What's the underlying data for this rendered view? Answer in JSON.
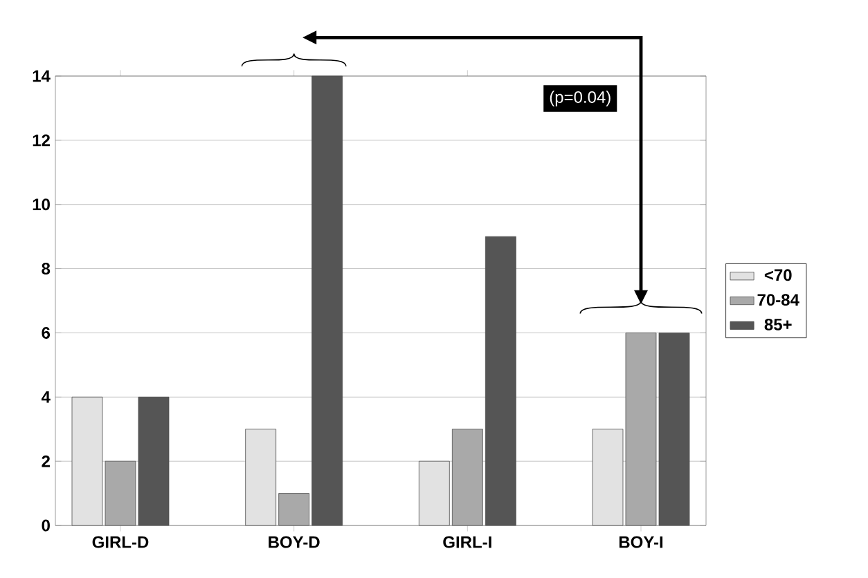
{
  "chart_data": {
    "type": "bar",
    "categories": [
      "GIRL-D",
      "BOY-D",
      "GIRL-I",
      "BOY-I"
    ],
    "series": [
      {
        "name": "<70",
        "color": "#e2e2e2",
        "values": [
          4,
          3,
          2,
          3
        ]
      },
      {
        "name": "70-84",
        "color": "#a9a9a9",
        "values": [
          2,
          1,
          3,
          6
        ]
      },
      {
        "name": "85+",
        "color": "#555555",
        "values": [
          4,
          14,
          9,
          6
        ]
      }
    ],
    "ylim": [
      0,
      14
    ],
    "yticks": [
      0,
      2,
      4,
      6,
      8,
      10,
      12,
      14
    ],
    "grid": "y",
    "legend": "right",
    "annotations": [
      "(p=0.04)"
    ]
  }
}
